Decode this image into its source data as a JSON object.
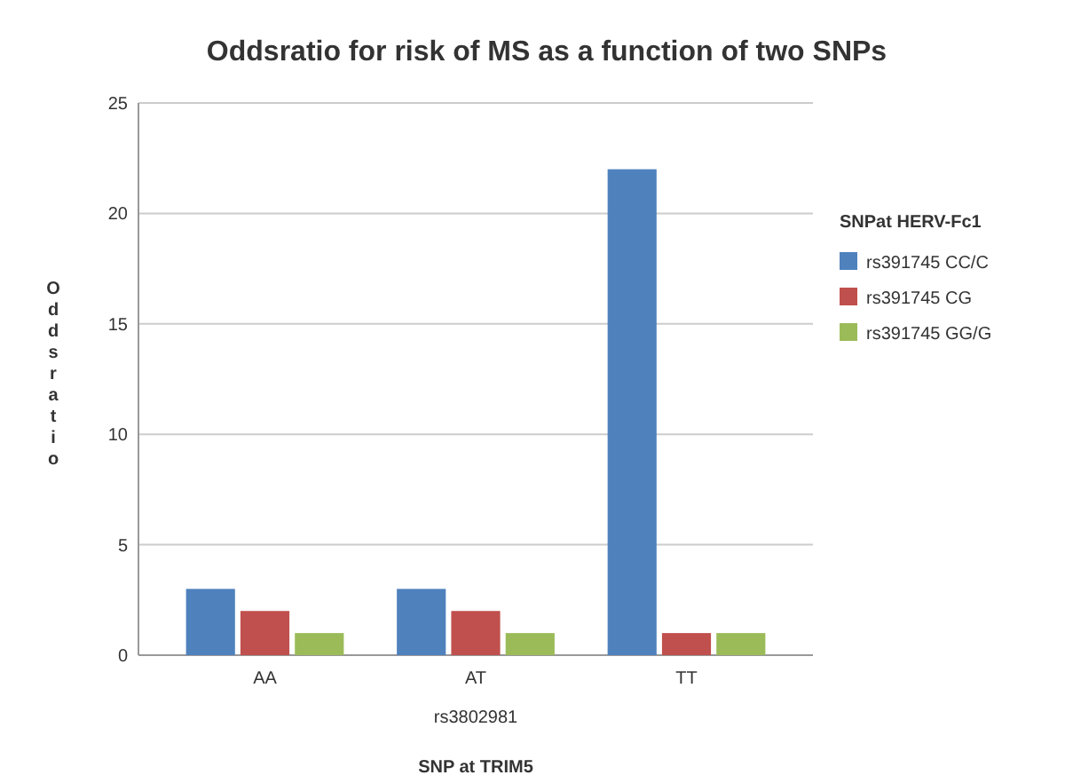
{
  "chart_data": {
    "type": "bar",
    "title": "Oddsratio for risk of MS as a function of two SNPs",
    "xlabel": "SNP at TRIM5",
    "ylabel": "Oddsratio",
    "legend_title": "SNPat HERV-Fc1",
    "annotations": [
      "rs3802981"
    ],
    "categories": [
      "AA",
      "AT",
      "TT"
    ],
    "series": [
      {
        "name": "rs391745 CC/C",
        "color": "#4f81bd",
        "values": [
          3,
          3,
          22
        ]
      },
      {
        "name": "rs391745 CG",
        "color": "#c0504d",
        "values": [
          2,
          2,
          1
        ]
      },
      {
        "name": "rs391745 GG/G",
        "color": "#9bbb59",
        "values": [
          1,
          1,
          1
        ]
      }
    ],
    "ylim": [
      0,
      25
    ],
    "yticks": [
      0,
      5,
      10,
      15,
      20,
      25
    ],
    "grid": "y",
    "legend": "right"
  }
}
